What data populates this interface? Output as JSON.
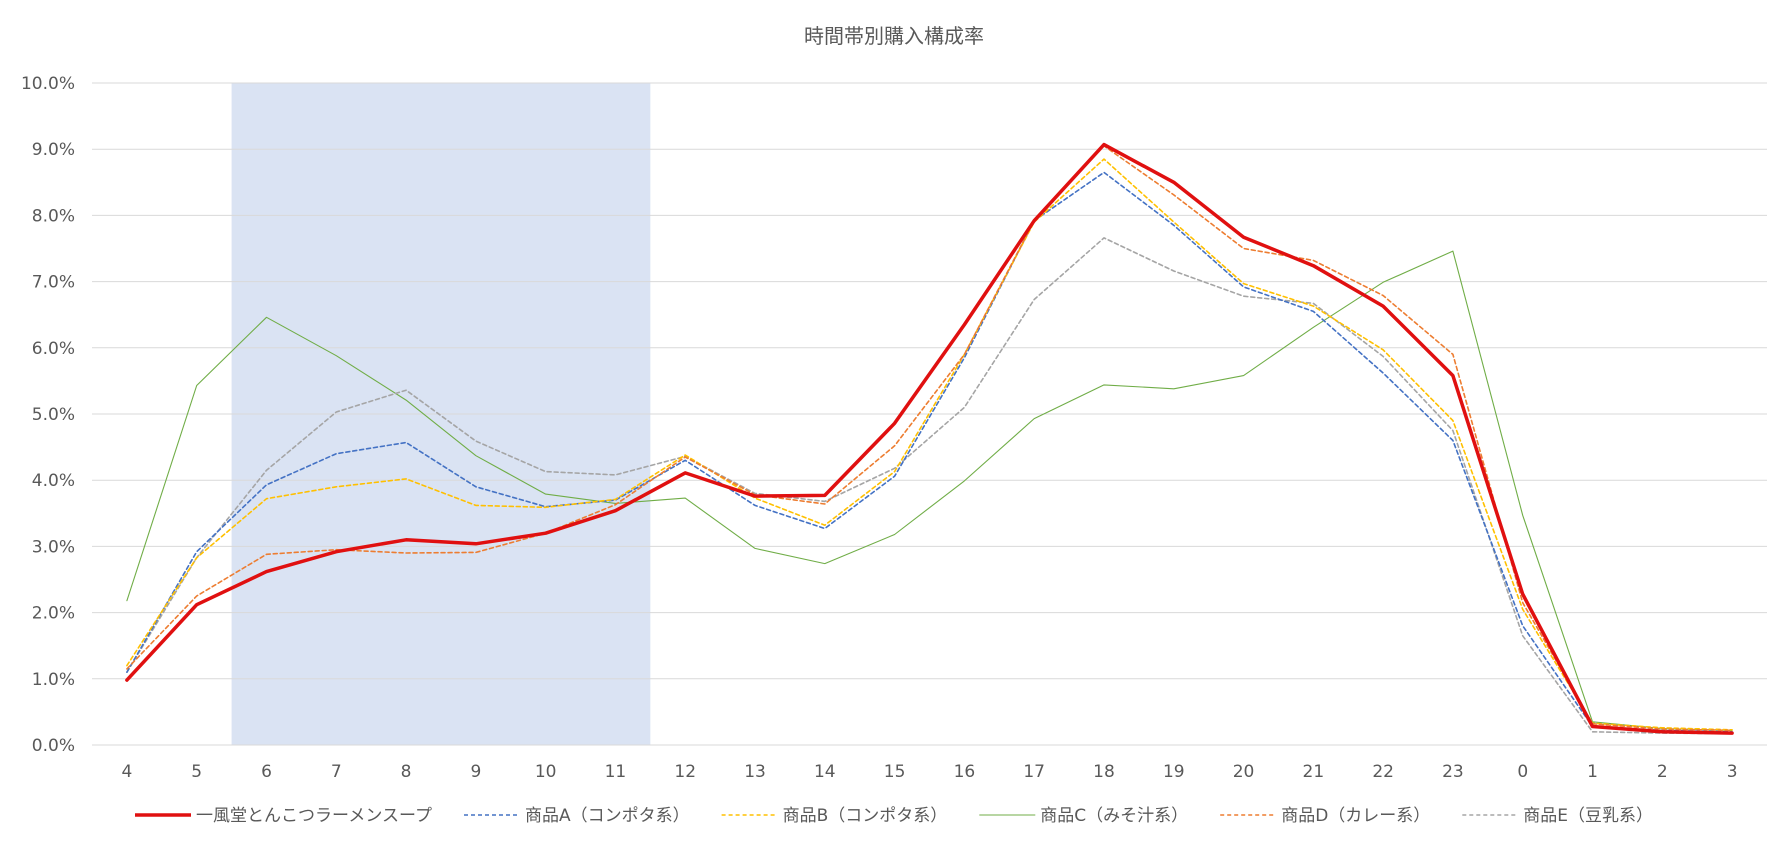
{
  "chart_data": {
    "type": "line",
    "title": "時間帯別購入構成率",
    "xlabel": "",
    "ylabel": "",
    "categories": [
      "4",
      "5",
      "6",
      "7",
      "8",
      "9",
      "10",
      "11",
      "12",
      "13",
      "14",
      "15",
      "16",
      "17",
      "18",
      "19",
      "20",
      "21",
      "22",
      "23",
      "0",
      "1",
      "2",
      "3"
    ],
    "y_ticks": [
      "0.0%",
      "1.0%",
      "2.0%",
      "3.0%",
      "4.0%",
      "5.0%",
      "6.0%",
      "7.0%",
      "8.0%",
      "9.0%",
      "10.0%"
    ],
    "ylim": [
      0,
      10
    ],
    "grid": true,
    "legend_position": "bottom",
    "highlight_range": [
      "6",
      "11"
    ],
    "highlight_color": "#dae3f3",
    "series": [
      {
        "name": "一風堂とんこつラーメンスープ",
        "color": "#e01010",
        "style": "solid-bold",
        "values": [
          0.98,
          2.12,
          2.62,
          2.92,
          3.1,
          3.04,
          3.2,
          3.54,
          4.11,
          3.76,
          3.77,
          4.86,
          6.35,
          7.92,
          9.07,
          8.5,
          7.67,
          7.24,
          6.63,
          5.58,
          2.28,
          0.28,
          0.2,
          0.18
        ]
      },
      {
        "name": "商品A（コンポタ系）",
        "color": "#4472c4",
        "style": "dashed",
        "values": [
          1.1,
          2.92,
          3.93,
          4.4,
          4.57,
          3.9,
          3.6,
          3.7,
          4.3,
          3.62,
          3.27,
          4.06,
          5.85,
          7.92,
          8.65,
          7.85,
          6.92,
          6.55,
          5.62,
          4.6,
          1.8,
          0.28,
          0.22,
          0.2
        ]
      },
      {
        "name": "商品B（コンポタ系）",
        "color": "#ffc000",
        "style": "dashed",
        "values": [
          1.2,
          2.83,
          3.72,
          3.9,
          4.02,
          3.62,
          3.59,
          3.71,
          4.38,
          3.73,
          3.32,
          4.13,
          5.9,
          7.9,
          8.85,
          7.9,
          6.97,
          6.63,
          5.97,
          4.9,
          2.05,
          0.33,
          0.26,
          0.23
        ]
      },
      {
        "name": "商品C（みそ汁系）",
        "color": "#70ad47",
        "style": "solid-thin",
        "values": [
          2.18,
          5.43,
          6.46,
          5.88,
          5.21,
          4.37,
          3.79,
          3.65,
          3.73,
          2.97,
          2.74,
          3.18,
          3.99,
          4.93,
          5.44,
          5.38,
          5.58,
          6.31,
          6.99,
          7.46,
          3.47,
          0.35,
          0.25,
          0.22
        ]
      },
      {
        "name": "商品D（カレー系）",
        "color": "#ed7d31",
        "style": "dashed",
        "values": [
          1.15,
          2.25,
          2.88,
          2.95,
          2.9,
          2.91,
          3.2,
          3.63,
          4.35,
          3.78,
          3.64,
          4.52,
          5.9,
          7.92,
          9.05,
          8.31,
          7.5,
          7.32,
          6.79,
          5.9,
          2.15,
          0.32,
          0.24,
          0.22
        ]
      },
      {
        "name": "商品E（豆乳系）",
        "color": "#a5a5a5",
        "style": "dashed",
        "values": [
          1.1,
          2.83,
          4.15,
          5.03,
          5.36,
          4.59,
          4.13,
          4.08,
          4.36,
          3.8,
          3.68,
          4.18,
          5.1,
          6.73,
          7.66,
          7.16,
          6.78,
          6.67,
          5.87,
          4.75,
          1.65,
          0.2,
          0.18,
          0.17
        ]
      }
    ]
  }
}
